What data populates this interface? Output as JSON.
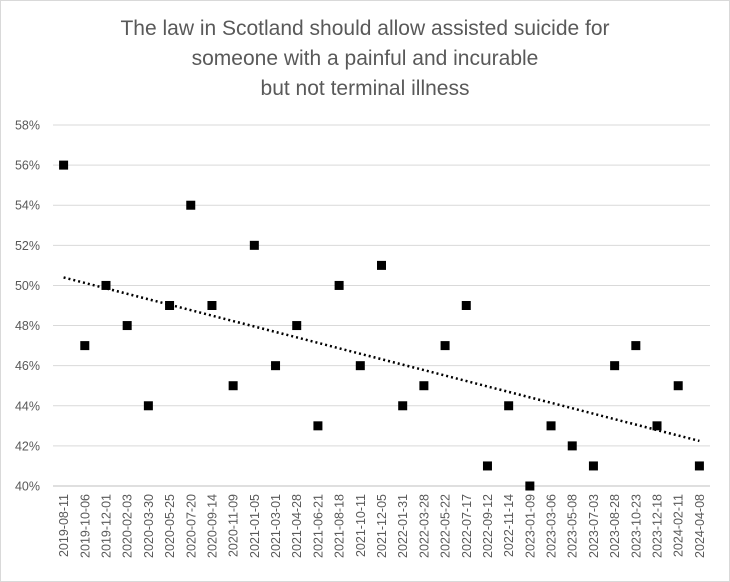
{
  "chart_data": {
    "type": "scatter",
    "title": "The law in Scotland should allow assisted suicide for someone with a painful and incurable but not terminal illness",
    "title_lines": [
      "The law in Scotland should allow assisted suicide for",
      "someone with a painful and incurable",
      "but not terminal illness"
    ],
    "xlabel": "",
    "ylabel": "",
    "ylim": [
      0.4,
      0.58
    ],
    "y_ticks": [
      "40%",
      "42%",
      "44%",
      "46%",
      "48%",
      "50%",
      "52%",
      "54%",
      "56%",
      "58%"
    ],
    "grid": true,
    "legend": "none",
    "trendline": "linear (dotted)",
    "marker_color": "#000000",
    "gridline_color": "#d9d9d9",
    "x": [
      "2019-08-11",
      "2019-10-06",
      "2019-12-01",
      "2020-02-03",
      "2020-03-30",
      "2020-05-25",
      "2020-07-20",
      "2020-09-14",
      "2020-11-09",
      "2021-01-05",
      "2021-03-01",
      "2021-04-28",
      "2021-06-21",
      "2021-08-18",
      "2021-10-11",
      "2021-12-05",
      "2022-01-31",
      "2022-03-28",
      "2022-05-22",
      "2022-07-17",
      "2022-09-12",
      "2022-11-14",
      "2023-01-09",
      "2023-03-06",
      "2023-05-08",
      "2023-07-03",
      "2023-08-28",
      "2023-10-23",
      "2023-12-18",
      "2024-02-11",
      "2024-04-08"
    ],
    "y": [
      0.56,
      0.47,
      0.5,
      0.48,
      0.44,
      0.49,
      0.54,
      0.49,
      0.45,
      0.52,
      0.46,
      0.48,
      0.43,
      0.5,
      0.46,
      0.51,
      0.44,
      0.45,
      0.47,
      0.49,
      0.41,
      0.44,
      0.4,
      0.43,
      0.42,
      0.41,
      0.46,
      0.47,
      0.43,
      0.45,
      0.41
    ]
  }
}
